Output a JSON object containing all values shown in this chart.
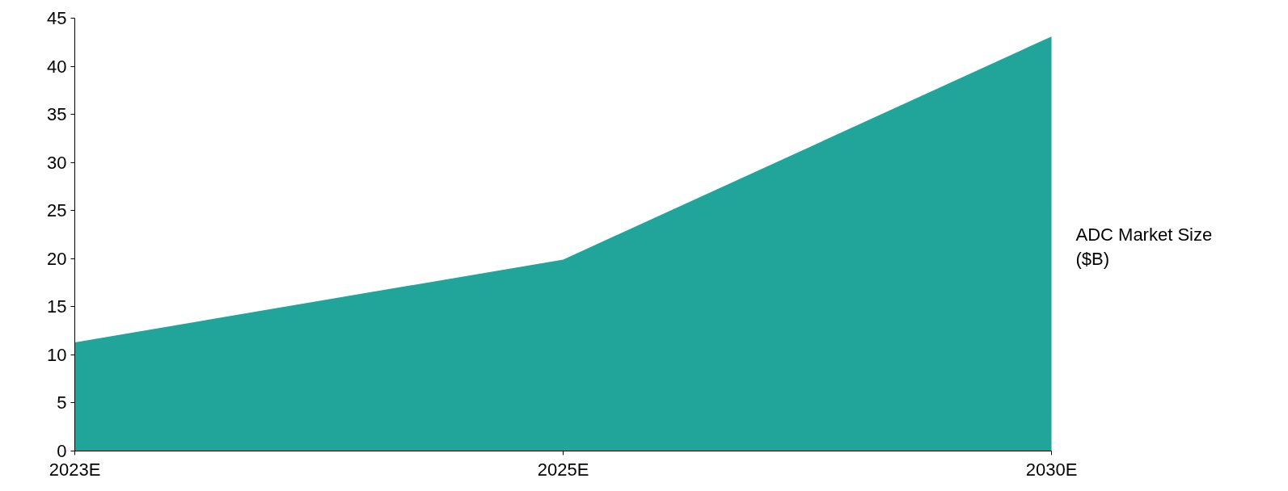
{
  "chart_data": {
    "type": "area",
    "categories": [
      "2023E",
      "2025E",
      "2030E"
    ],
    "series": [
      {
        "name": "ADC Market Size ($B)",
        "color": "#21a499",
        "values": [
          11.3,
          19.9,
          43.1
        ]
      }
    ],
    "ylim": [
      0,
      45
    ],
    "yticks": [
      0,
      5,
      10,
      15,
      20,
      25,
      30,
      35,
      40,
      45
    ],
    "grid": false
  }
}
